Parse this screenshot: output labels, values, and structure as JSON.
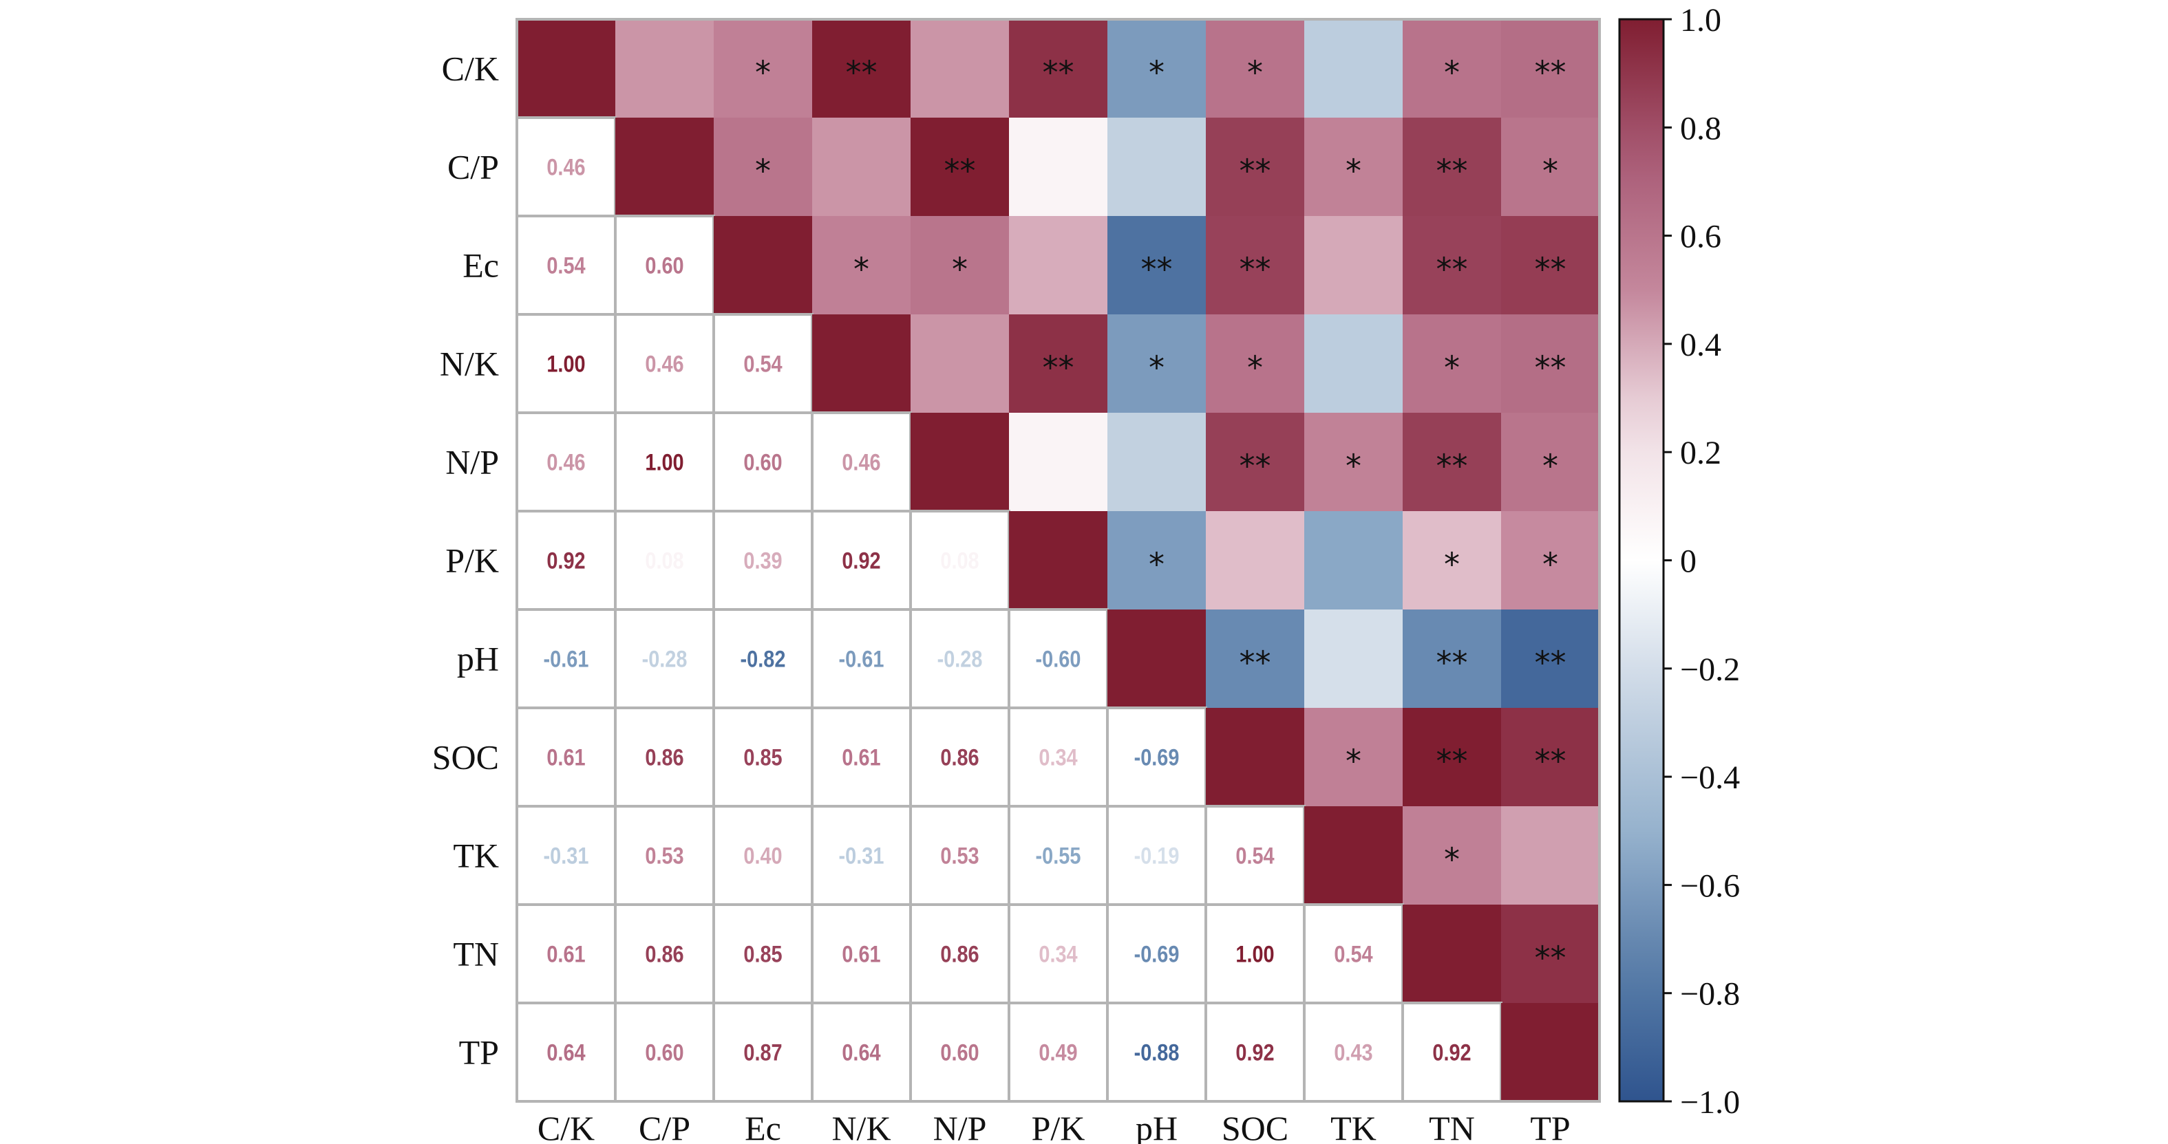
{
  "chart_data": {
    "type": "heatmap",
    "title": "",
    "variables": [
      "C/K",
      "C/P",
      "Ec",
      "N/K",
      "N/P",
      "P/K",
      "pH",
      "SOC",
      "TK",
      "TN",
      "TP"
    ],
    "lower_triangle_values": [
      [],
      [
        0.46
      ],
      [
        0.54,
        0.6
      ],
      [
        1.0,
        0.46,
        0.54
      ],
      [
        0.46,
        1.0,
        0.6,
        0.46
      ],
      [
        0.92,
        0.08,
        0.39,
        0.92,
        0.08
      ],
      [
        -0.61,
        -0.28,
        -0.82,
        -0.61,
        -0.28,
        -0.6
      ],
      [
        0.61,
        0.86,
        0.85,
        0.61,
        0.86,
        0.34,
        -0.69
      ],
      [
        -0.31,
        0.53,
        0.4,
        -0.31,
        0.53,
        -0.55,
        -0.19,
        0.54
      ],
      [
        0.61,
        0.86,
        0.85,
        0.61,
        0.86,
        0.34,
        -0.69,
        1.0,
        0.54
      ],
      [
        0.64,
        0.6,
        0.87,
        0.64,
        0.6,
        0.49,
        -0.88,
        0.92,
        0.43,
        0.92
      ]
    ],
    "upper_triangle_significance": [
      [
        "",
        "*",
        "**",
        "",
        "**",
        "*",
        "*",
        "",
        "*",
        "**"
      ],
      [
        "*",
        "",
        "**",
        "",
        "",
        "**",
        "*",
        "**",
        "*"
      ],
      [
        "*",
        "*",
        "",
        "**",
        "**",
        "",
        "**",
        "**"
      ],
      [
        "",
        "**",
        "*",
        "*",
        "",
        "*",
        "**"
      ],
      [
        "",
        "",
        "**",
        "*",
        "**",
        "*"
      ],
      [
        "*",
        "",
        "",
        "*",
        "*"
      ],
      [
        "**",
        "",
        "**",
        "**"
      ],
      [
        "*",
        "**",
        "**"
      ],
      [
        "*",
        ""
      ],
      [
        "**"
      ]
    ],
    "colorbar": {
      "range": [
        -1.0,
        1.0
      ],
      "ticks": [
        "1.0",
        "0.8",
        "0.6",
        "0.4",
        "0.2",
        "0",
        "−0.2",
        "−0.4",
        "−0.6",
        "−0.8",
        "−1.0"
      ],
      "tick_values": [
        1.0,
        0.8,
        0.6,
        0.4,
        0.2,
        0,
        -0.2,
        -0.4,
        -0.6,
        -0.8,
        -1.0
      ]
    },
    "colors": {
      "positive": "#801e31",
      "zero": "#ffffff",
      "negative": "#2f548e",
      "grid": "#b4b4b4"
    }
  }
}
